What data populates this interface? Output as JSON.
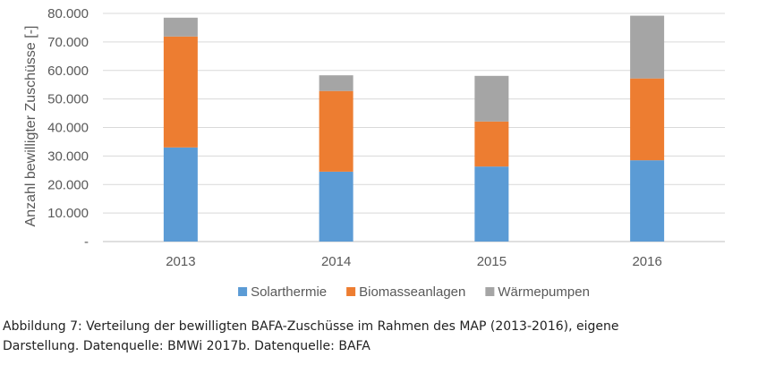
{
  "chart_data": {
    "type": "bar",
    "stacked": true,
    "title": "",
    "xlabel": "",
    "ylabel": "Anzahl bewilligter Zuschüsse [-]",
    "ylim": [
      0,
      80000
    ],
    "y_ticks": [
      0,
      10000,
      20000,
      30000,
      40000,
      50000,
      60000,
      70000,
      80000
    ],
    "y_tick_labels": [
      "-",
      "10.000",
      "20.000",
      "30.000",
      "40.000",
      "50.000",
      "60.000",
      "70.000",
      "80.000"
    ],
    "categories": [
      "2013",
      "2014",
      "2015",
      "2016"
    ],
    "series": [
      {
        "name": "Solarthermie",
        "color": "#5B9BD5",
        "values": [
          33000,
          24500,
          26300,
          28500
        ]
      },
      {
        "name": "Biomasseanlagen",
        "color": "#ED7D31",
        "values": [
          38900,
          28300,
          15800,
          28700
        ]
      },
      {
        "name": "Wärmepumpen",
        "color": "#A5A5A5",
        "values": [
          6600,
          5500,
          16000,
          22000
        ]
      }
    ],
    "grid": true,
    "legend_position": "bottom"
  },
  "colors": {
    "grid": "#D9D9D9",
    "axis": "#BFBFBF",
    "text": "#595959"
  },
  "caption": {
    "line1": "Abbildung 7: Verteilung der bewilligten BAFA-Zuschüsse im Rahmen des MAP (2013-2016), eigene",
    "line2": "Darstellung. Datenquelle: BMWi 2017b. Datenquelle: BAFA"
  }
}
